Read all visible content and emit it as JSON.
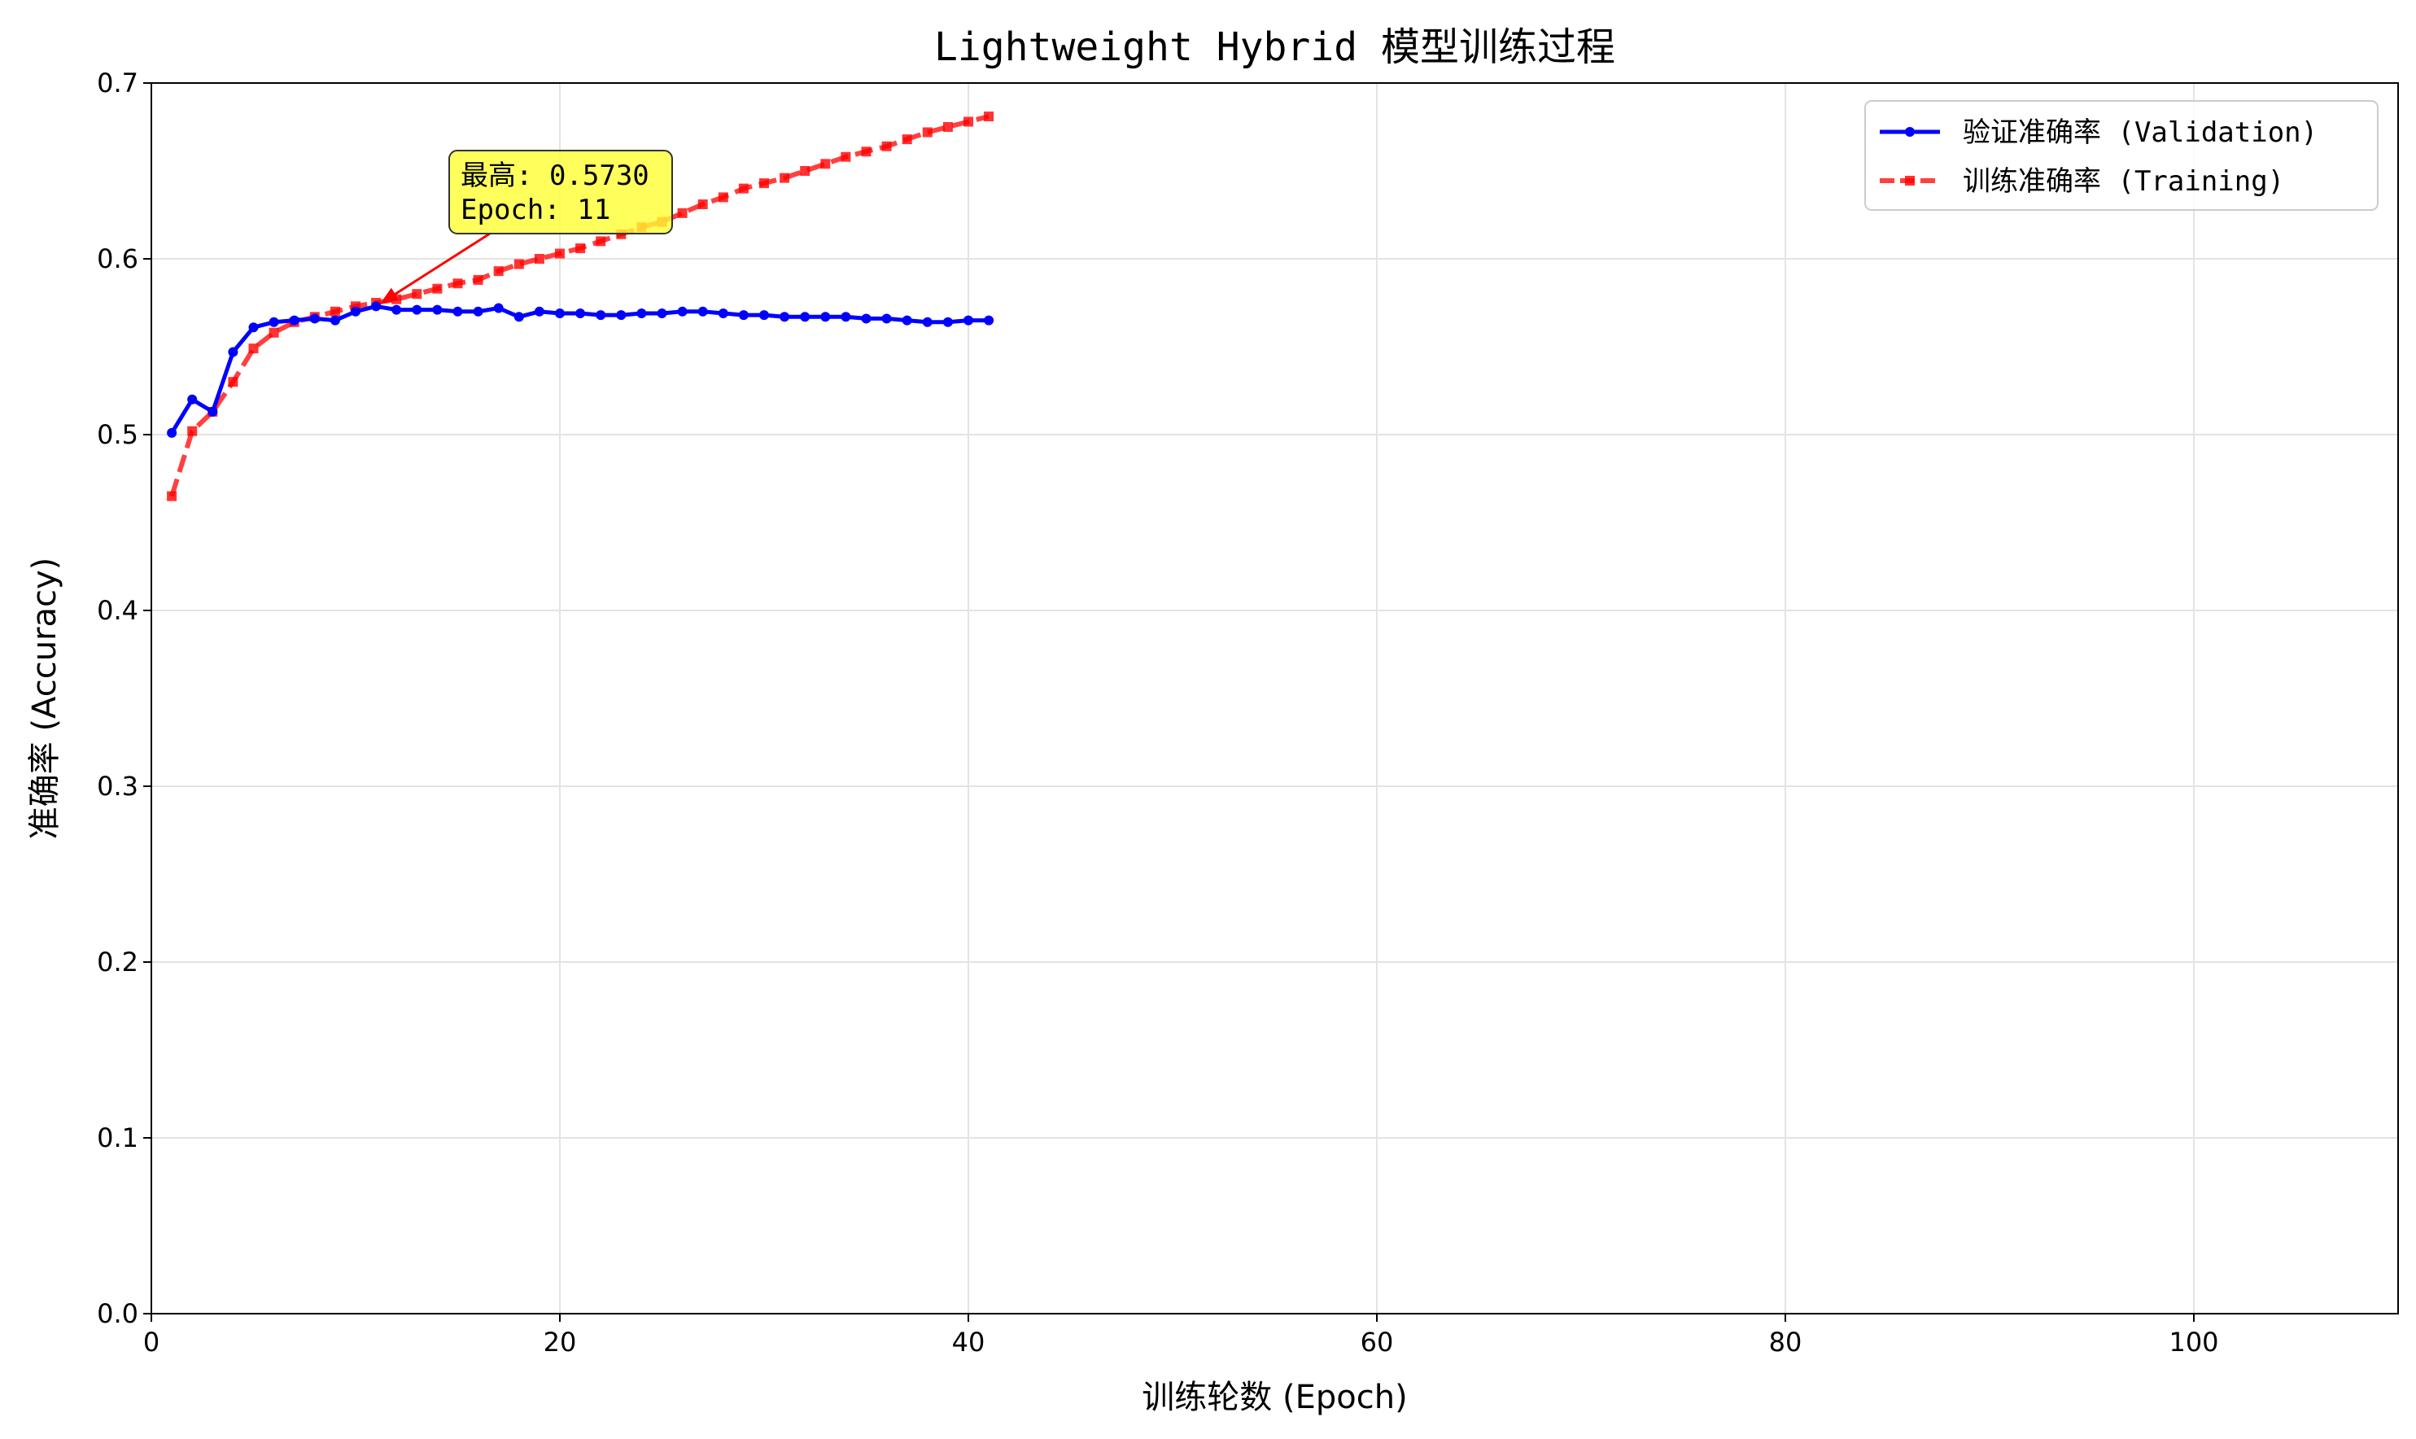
{
  "chart_data": {
    "type": "line",
    "title": "Lightweight Hybrid 模型训练过程",
    "xlabel": "训练轮数 (Epoch)",
    "ylabel": "准确率 (Accuracy)",
    "xlim": [
      0,
      110
    ],
    "ylim": [
      0,
      0.7
    ],
    "xticks": [
      0,
      20,
      40,
      60,
      80,
      100
    ],
    "yticks": [
      0.0,
      0.1,
      0.2,
      0.3,
      0.4,
      0.5,
      0.6,
      0.7
    ],
    "xtick_labels": [
      "0",
      "20",
      "40",
      "60",
      "80",
      "100"
    ],
    "ytick_labels": [
      "0.0",
      "0.1",
      "0.2",
      "0.3",
      "0.4",
      "0.5",
      "0.6",
      "0.7"
    ],
    "grid": true,
    "legend_position": "top-right",
    "x": [
      1,
      2,
      3,
      4,
      5,
      6,
      7,
      8,
      9,
      10,
      11,
      12,
      13,
      14,
      15,
      16,
      17,
      18,
      19,
      20,
      21,
      22,
      23,
      24,
      25,
      26,
      27,
      28,
      29,
      30,
      31,
      32,
      33,
      34,
      35,
      36,
      37,
      38,
      39,
      40,
      41
    ],
    "series": [
      {
        "name": "验证准确率 (Validation)",
        "color": "#0000ff",
        "marker": "circle",
        "line_style": "solid",
        "values": [
          0.501,
          0.52,
          0.513,
          0.547,
          0.561,
          0.564,
          0.565,
          0.566,
          0.565,
          0.57,
          0.573,
          0.571,
          0.571,
          0.571,
          0.57,
          0.57,
          0.572,
          0.567,
          0.57,
          0.569,
          0.569,
          0.568,
          0.568,
          0.569,
          0.569,
          0.57,
          0.57,
          0.569,
          0.568,
          0.568,
          0.567,
          0.567,
          0.567,
          0.567,
          0.566,
          0.566,
          0.565,
          0.564,
          0.564,
          0.565,
          0.565
        ]
      },
      {
        "name": "训练准确率 (Training)",
        "color": "#ff0000",
        "marker": "square",
        "line_style": "dashed",
        "values": [
          0.465,
          0.502,
          0.513,
          0.53,
          0.549,
          0.558,
          0.564,
          0.567,
          0.57,
          0.573,
          0.575,
          0.577,
          0.58,
          0.583,
          0.586,
          0.588,
          0.593,
          0.597,
          0.6,
          0.603,
          0.606,
          0.61,
          0.614,
          0.618,
          0.621,
          0.626,
          0.631,
          0.635,
          0.64,
          0.643,
          0.646,
          0.65,
          0.654,
          0.658,
          0.661,
          0.664,
          0.668,
          0.672,
          0.675,
          0.678,
          0.681
        ]
      }
    ],
    "annotation": {
      "line1": "最高: 0.5730",
      "line2": "Epoch: 11",
      "target_x": 11,
      "target_y": 0.573,
      "box_color": "#ffff33",
      "arrow_color": "#ff0000"
    }
  }
}
